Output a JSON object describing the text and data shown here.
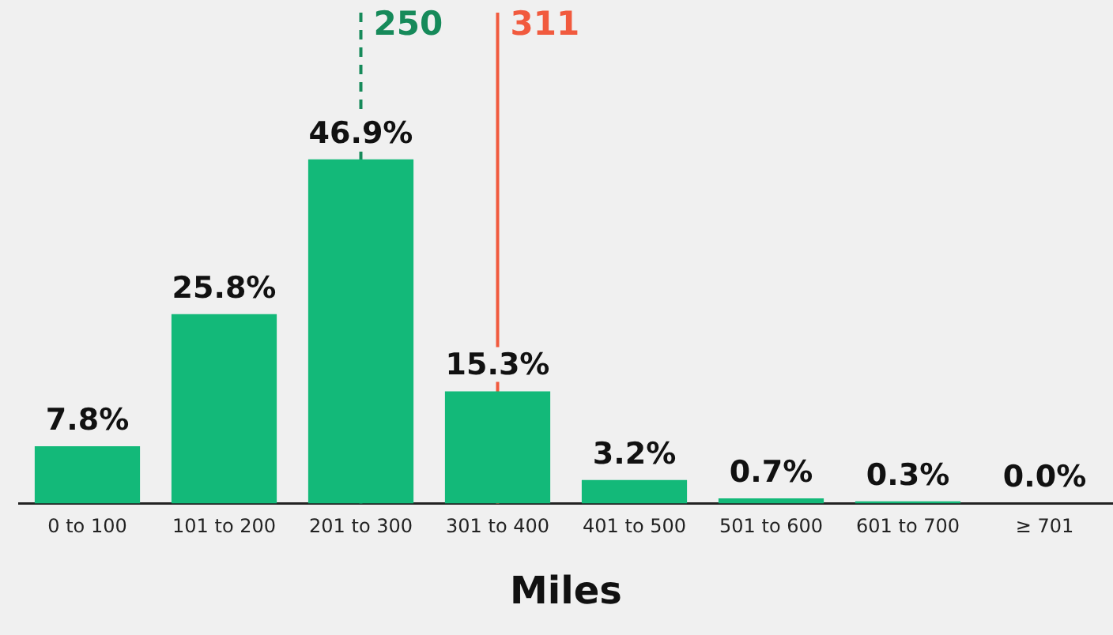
{
  "chart_data": {
    "type": "bar",
    "xlabel": "Miles",
    "categories": [
      "0 to 100",
      "101 to 200",
      "201 to 300",
      "301 to 400",
      "401 to 500",
      "501 to 600",
      "601 to 700",
      "≥ 701"
    ],
    "values": [
      7.8,
      25.8,
      46.9,
      15.3,
      3.2,
      0.7,
      0.3,
      0.0
    ],
    "value_labels": [
      "7.8%",
      "25.8%",
      "46.9%",
      "15.3%",
      "3.2%",
      "0.7%",
      "0.3%",
      "0.0%"
    ],
    "color": "#13b979",
    "ref_lines": [
      {
        "axis": "x",
        "value": "201 to 300",
        "label": "250",
        "color": "#168a5a",
        "line_style": "dashed"
      },
      {
        "axis": "x",
        "value": "301 to 400",
        "label": "311",
        "color": "#f15a3e",
        "line_style": "solid"
      }
    ],
    "tick_labels": "x",
    "grid": false,
    "legend": false
  }
}
